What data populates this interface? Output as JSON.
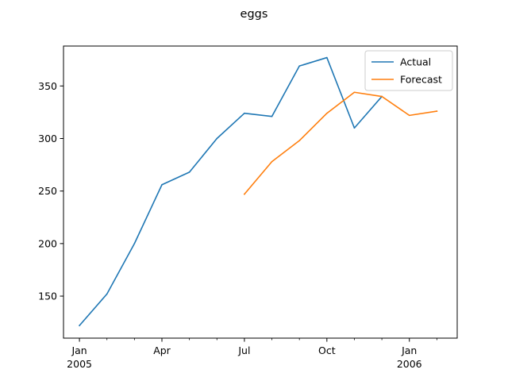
{
  "chart_data": {
    "type": "line",
    "title": "eggs",
    "xlabel": "",
    "ylabel": "",
    "x_axis": {
      "type": "monthly-date",
      "range": [
        "2004-12",
        "2006-03"
      ],
      "major_ticks": [
        {
          "date": "2005-01",
          "label": "Jan",
          "sublabel": "2005"
        },
        {
          "date": "2005-04",
          "label": "Apr",
          "sublabel": ""
        },
        {
          "date": "2005-07",
          "label": "Jul",
          "sublabel": ""
        },
        {
          "date": "2005-10",
          "label": "Oct",
          "sublabel": ""
        },
        {
          "date": "2006-01",
          "label": "Jan",
          "sublabel": "2006"
        }
      ],
      "minor_ticks": [
        "2005-02",
        "2005-03",
        "2005-05",
        "2005-06",
        "2005-08",
        "2005-09",
        "2005-11",
        "2005-12",
        "2006-02"
      ]
    },
    "y_axis": {
      "range": [
        110,
        388
      ],
      "ticks": [
        150,
        200,
        250,
        300,
        350
      ]
    },
    "grid": false,
    "legend": {
      "placement": "upper-right"
    },
    "series": [
      {
        "name": "Actual",
        "color": "#1f77b4",
        "points": [
          {
            "x": "2005-01",
            "y": 122
          },
          {
            "x": "2005-02",
            "y": 152
          },
          {
            "x": "2005-03",
            "y": 200
          },
          {
            "x": "2005-04",
            "y": 256
          },
          {
            "x": "2005-05",
            "y": 268
          },
          {
            "x": "2005-06",
            "y": 300
          },
          {
            "x": "2005-07",
            "y": 324
          },
          {
            "x": "2005-08",
            "y": 321
          },
          {
            "x": "2005-09",
            "y": 369
          },
          {
            "x": "2005-10",
            "y": 377
          },
          {
            "x": "2005-11",
            "y": 310
          },
          {
            "x": "2005-12",
            "y": 340
          }
        ]
      },
      {
        "name": "Forecast",
        "color": "#ff7f0e",
        "points": [
          {
            "x": "2005-07",
            "y": 247
          },
          {
            "x": "2005-08",
            "y": 278
          },
          {
            "x": "2005-09",
            "y": 298
          },
          {
            "x": "2005-10",
            "y": 324
          },
          {
            "x": "2005-11",
            "y": 344
          },
          {
            "x": "2005-12",
            "y": 340
          },
          {
            "x": "2006-01",
            "y": 322
          },
          {
            "x": "2006-02",
            "y": 326
          }
        ]
      }
    ]
  }
}
